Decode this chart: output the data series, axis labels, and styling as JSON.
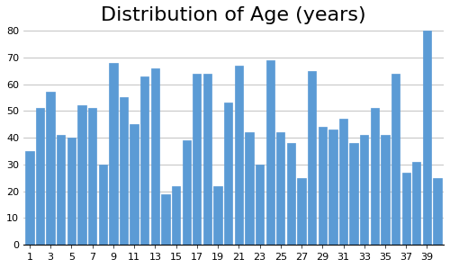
{
  "title": "Distribution of Age (years)",
  "bar_color": "#5B9BD5",
  "ylim": [
    0,
    80
  ],
  "yticks": [
    0,
    10,
    20,
    30,
    40,
    50,
    60,
    70,
    80
  ],
  "x_labels": [
    "1",
    "3",
    "5",
    "7",
    "9",
    "11",
    "13",
    "15",
    "17",
    "19",
    "21",
    "23",
    "25",
    "27",
    "29",
    "31",
    "33",
    "35",
    "37",
    "39"
  ],
  "values": [
    35,
    51,
    57,
    41,
    40,
    52,
    51,
    30,
    68,
    55,
    45,
    63,
    66,
    19,
    22,
    39,
    64,
    64,
    22,
    53,
    67,
    42,
    30,
    69,
    42,
    38,
    25,
    65,
    44,
    43,
    47,
    38,
    41,
    51,
    41,
    64,
    27,
    31,
    80,
    25
  ],
  "background_color": "#ffffff",
  "grid_color": "#AAAAAA",
  "title_fontsize": 16
}
